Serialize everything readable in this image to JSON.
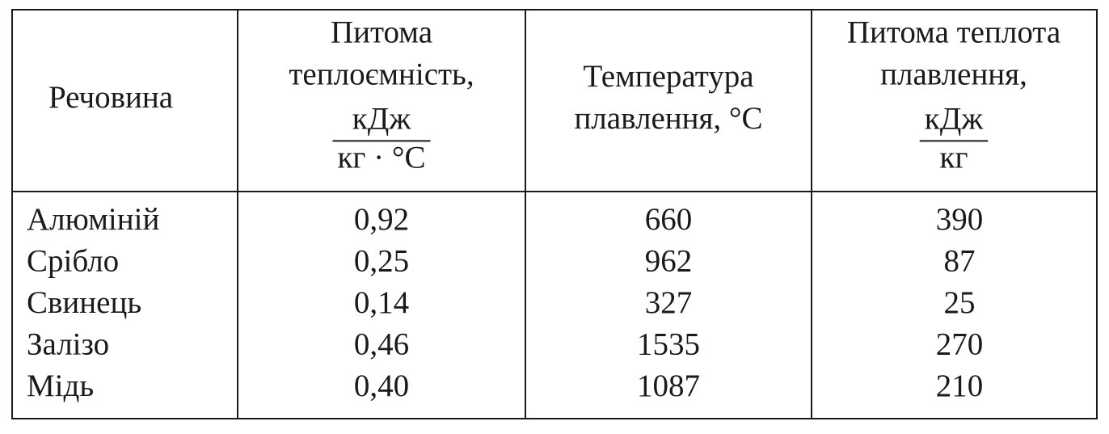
{
  "table": {
    "header": [
      {
        "lines": [
          "Речовина"
        ]
      },
      {
        "lines": [
          "Питома",
          "теплоємність,"
        ],
        "fraction": {
          "numerator": "кДж",
          "denominator": "кг · °C"
        }
      },
      {
        "lines": [
          "Температура",
          "плавлення, °C"
        ]
      },
      {
        "lines": [
          "Питома теплота",
          "плавлення,"
        ],
        "fraction": {
          "numerator": "кДж",
          "denominator": "кг"
        }
      }
    ],
    "rows": [
      [
        "Алюміній",
        "0,92",
        "660",
        "390"
      ],
      [
        "Срібло",
        "0,25",
        "962",
        "87"
      ],
      [
        "Свинець",
        "0,14",
        "327",
        "25"
      ],
      [
        "Залізо",
        "0,46",
        "1535",
        "270"
      ],
      [
        "Мідь",
        "0,40",
        "1087",
        "210"
      ]
    ]
  }
}
